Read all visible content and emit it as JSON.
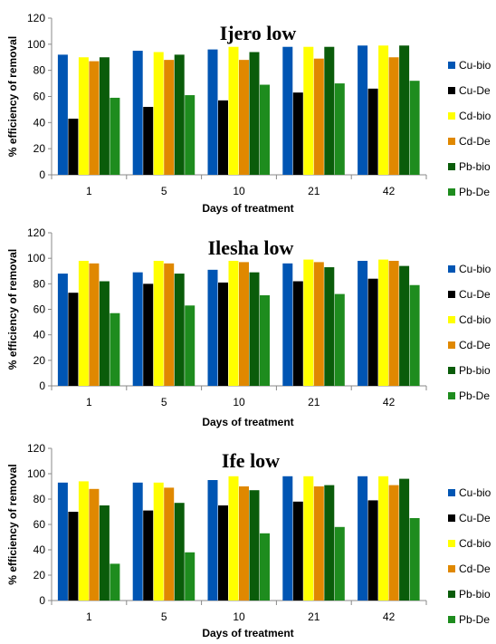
{
  "chart_data": [
    {
      "type": "bar",
      "title": "Ijero low",
      "xlabel": "Days of treatment",
      "ylabel": "% efficiency of removal",
      "ylim": [
        0,
        120
      ],
      "yticks": [
        "0",
        "20",
        "40",
        "60",
        "80",
        "100",
        "120"
      ],
      "categories": [
        "1",
        "5",
        "10",
        "21",
        "42"
      ],
      "legend_position": "right",
      "series": [
        {
          "name": "Cu-bio",
          "color": "#0055b3",
          "values": [
            92,
            95,
            96,
            98,
            99
          ]
        },
        {
          "name": "Cu-De",
          "color": "#000000",
          "values": [
            43,
            52,
            57,
            63,
            66
          ]
        },
        {
          "name": "Cd-bio",
          "color": "#ffff00",
          "values": [
            90,
            94,
            98,
            98,
            99
          ]
        },
        {
          "name": "Cd-De",
          "color": "#e08800",
          "values": [
            87,
            88,
            88,
            89,
            90
          ]
        },
        {
          "name": "Pb-bio",
          "color": "#0a5c0a",
          "values": [
            90,
            92,
            94,
            98,
            99
          ]
        },
        {
          "name": "Pb-De",
          "color": "#1e8c1e",
          "values": [
            59,
            61,
            69,
            70,
            72
          ]
        }
      ]
    },
    {
      "type": "bar",
      "title": "Ilesha low",
      "xlabel": "Days of treatment",
      "ylabel": "% efficiency of removal",
      "ylim": [
        0,
        120
      ],
      "yticks": [
        "0",
        "20",
        "40",
        "60",
        "80",
        "100",
        "120"
      ],
      "categories": [
        "1",
        "5",
        "10",
        "21",
        "42"
      ],
      "legend_position": "right",
      "series": [
        {
          "name": "Cu-bio",
          "color": "#0055b3",
          "values": [
            88,
            89,
            91,
            96,
            98
          ]
        },
        {
          "name": "Cu-De",
          "color": "#000000",
          "values": [
            73,
            80,
            81,
            82,
            84
          ]
        },
        {
          "name": "Cd-bio",
          "color": "#ffff00",
          "values": [
            98,
            98,
            98,
            99,
            99
          ]
        },
        {
          "name": "Cd-De",
          "color": "#e08800",
          "values": [
            96,
            96,
            97,
            97,
            98
          ]
        },
        {
          "name": "Pb-bio",
          "color": "#0a5c0a",
          "values": [
            82,
            88,
            89,
            93,
            94
          ]
        },
        {
          "name": "Pb-De",
          "color": "#1e8c1e",
          "values": [
            57,
            63,
            71,
            72,
            79
          ]
        }
      ]
    },
    {
      "type": "bar",
      "title": "Ife low",
      "xlabel": "Days of treatment",
      "ylabel": "% efficiency of removal",
      "ylim": [
        0,
        120
      ],
      "yticks": [
        "0",
        "20",
        "40",
        "60",
        "80",
        "100",
        "120"
      ],
      "categories": [
        "1",
        "5",
        "10",
        "21",
        "42"
      ],
      "legend_position": "right",
      "series": [
        {
          "name": "Cu-bio",
          "color": "#0055b3",
          "values": [
            93,
            93,
            95,
            98,
            98
          ]
        },
        {
          "name": "Cu-De",
          "color": "#000000",
          "values": [
            70,
            71,
            75,
            78,
            79
          ]
        },
        {
          "name": "Cd-bio",
          "color": "#ffff00",
          "values": [
            94,
            93,
            98,
            98,
            98
          ]
        },
        {
          "name": "Cd-De",
          "color": "#e08800",
          "values": [
            88,
            89,
            90,
            90,
            91
          ]
        },
        {
          "name": "Pb-bio",
          "color": "#0a5c0a",
          "values": [
            75,
            77,
            87,
            91,
            96
          ]
        },
        {
          "name": "Pb-De",
          "color": "#1e8c1e",
          "values": [
            29,
            38,
            53,
            58,
            65
          ]
        }
      ]
    }
  ]
}
